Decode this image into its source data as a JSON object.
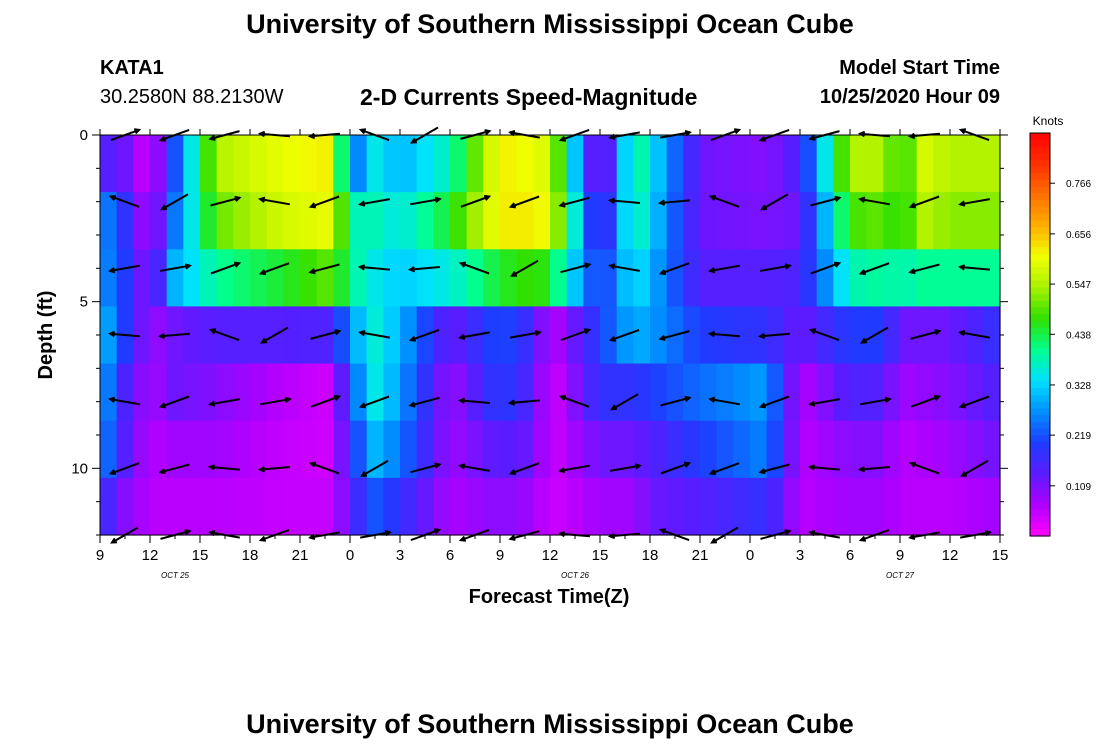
{
  "header": {
    "title": "University of Southern Mississippi Ocean Cube",
    "footer_title": "University of Southern Mississippi Ocean Cube",
    "station": "KATA1",
    "location": "30.2580N 88.2130W",
    "subtitle": "2-D Currents Speed-Magnitude",
    "model_start_label": "Model Start Time",
    "model_start_value": "10/25/2020 Hour 09"
  },
  "chart_data": {
    "type": "heatmap",
    "title": "2-D Currents Speed-Magnitude",
    "xlabel": "Forecast Time(Z)",
    "ylabel": "Depth (ft)",
    "x_tick_labels": [
      "9",
      "12",
      "15",
      "18",
      "21",
      "0",
      "3",
      "6",
      "9",
      "12",
      "15",
      "18",
      "21",
      "0",
      "3",
      "6",
      "9",
      "12",
      "15"
    ],
    "date_labels": [
      "OCT 25",
      "OCT 26",
      "OCT 27"
    ],
    "y_tick_labels": [
      "0",
      "5",
      "10"
    ],
    "ylim": [
      0,
      12
    ],
    "y_inverted": true,
    "x_range_hours": [
      0,
      54
    ],
    "colorbar": {
      "unit": "Knots",
      "tick_labels": [
        "0.766",
        "0.656",
        "0.547",
        "0.438",
        "0.328",
        "0.219",
        "0.109"
      ],
      "range": [
        0,
        0.875
      ],
      "colors": [
        "#ff00ff",
        "#b000ff",
        "#5a1cff",
        "#1e3cff",
        "#0090ff",
        "#00e0ff",
        "#00ff90",
        "#30e000",
        "#a8f000",
        "#f0ff00",
        "#ffb000",
        "#ff7000",
        "#ff3000",
        "#ff0000"
      ]
    },
    "depths_ft": [
      0,
      2,
      4,
      6,
      8,
      10,
      12
    ],
    "anchor_hours": [
      0,
      1.5,
      3,
      4.5,
      7,
      11,
      14,
      15,
      16.5,
      18,
      21,
      24,
      26,
      27,
      30,
      32,
      33,
      36,
      40,
      42,
      45,
      47,
      48,
      49.5,
      51,
      54
    ],
    "speed_profiles": [
      [
        0.15,
        0.12,
        0.03,
        0.22,
        0.55,
        0.6,
        0.62,
        0.22,
        0.35,
        0.3,
        0.38,
        0.62,
        0.6,
        0.58,
        0.05,
        0.42,
        0.35,
        0.12,
        0.1,
        0.15,
        0.55,
        0.55,
        0.45,
        0.58,
        0.55,
        0.55
      ],
      [
        0.28,
        0.18,
        0.05,
        0.25,
        0.5,
        0.58,
        0.6,
        0.38,
        0.38,
        0.35,
        0.45,
        0.62,
        0.62,
        0.6,
        0.12,
        0.4,
        0.33,
        0.12,
        0.11,
        0.12,
        0.48,
        0.5,
        0.45,
        0.55,
        0.52,
        0.52
      ],
      [
        0.28,
        0.2,
        0.08,
        0.3,
        0.4,
        0.45,
        0.5,
        0.4,
        0.35,
        0.32,
        0.36,
        0.45,
        0.48,
        0.45,
        0.18,
        0.35,
        0.3,
        0.14,
        0.14,
        0.15,
        0.38,
        0.4,
        0.38,
        0.4,
        0.4,
        0.4
      ],
      [
        0.32,
        0.2,
        0.08,
        0.12,
        0.14,
        0.14,
        0.15,
        0.28,
        0.36,
        0.3,
        0.12,
        0.22,
        0.16,
        0.05,
        0.2,
        0.3,
        0.28,
        0.2,
        0.18,
        0.12,
        0.2,
        0.2,
        0.12,
        0.12,
        0.12,
        0.18
      ],
      [
        0.3,
        0.15,
        0.07,
        0.12,
        0.1,
        0.06,
        0.04,
        0.22,
        0.35,
        0.28,
        0.08,
        0.2,
        0.14,
        0.03,
        0.18,
        0.18,
        0.2,
        0.24,
        0.28,
        0.06,
        0.15,
        0.14,
        0.08,
        0.09,
        0.1,
        0.15
      ],
      [
        0.28,
        0.14,
        0.06,
        0.08,
        0.08,
        0.05,
        0.04,
        0.18,
        0.3,
        0.25,
        0.08,
        0.14,
        0.12,
        0.04,
        0.12,
        0.12,
        0.14,
        0.2,
        0.26,
        0.06,
        0.1,
        0.1,
        0.06,
        0.07,
        0.08,
        0.12
      ],
      [
        0.18,
        0.1,
        0.06,
        0.06,
        0.06,
        0.05,
        0.05,
        0.14,
        0.22,
        0.18,
        0.07,
        0.1,
        0.08,
        0.04,
        0.08,
        0.08,
        0.12,
        0.14,
        0.18,
        0.06,
        0.08,
        0.08,
        0.06,
        0.06,
        0.06,
        0.08
      ]
    ]
  }
}
